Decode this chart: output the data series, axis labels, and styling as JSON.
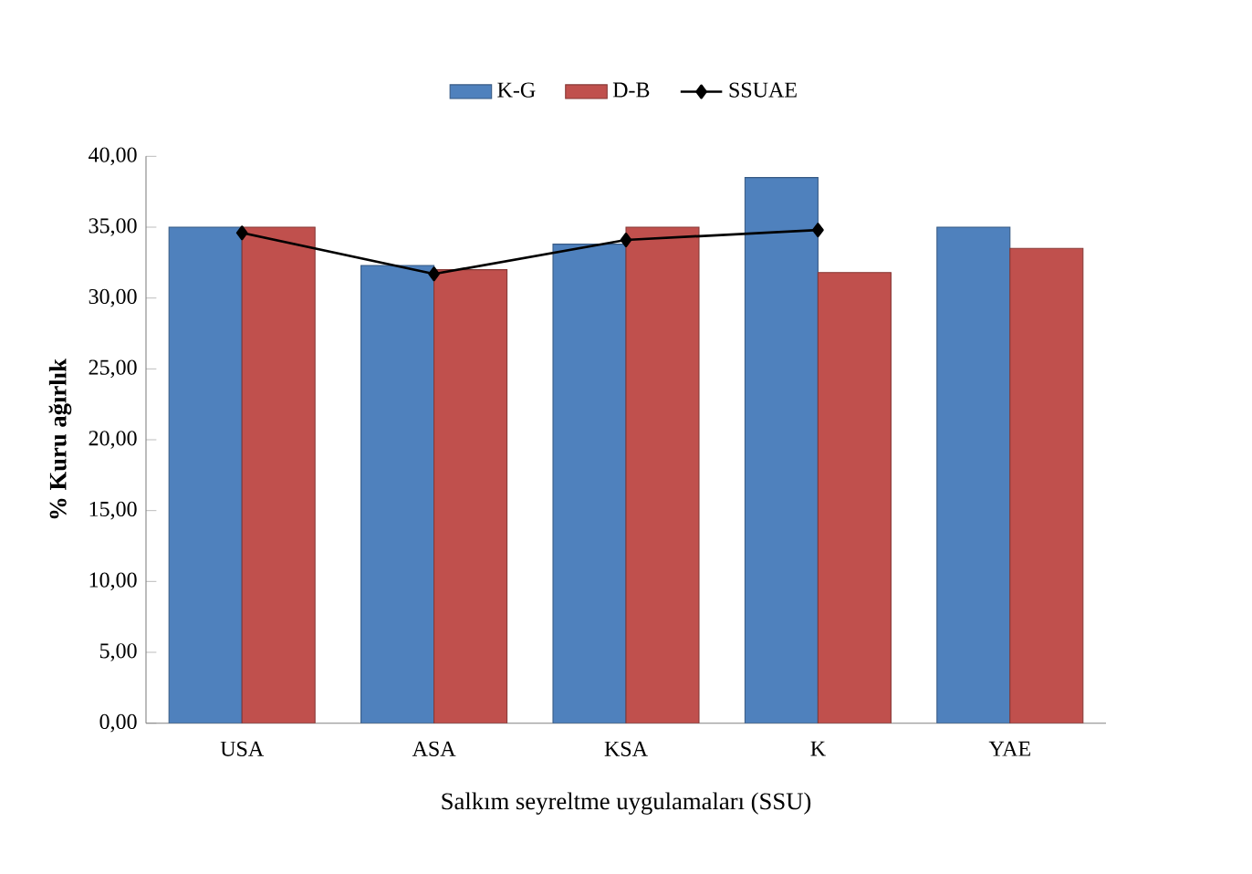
{
  "chart_data": {
    "type": "bar",
    "xlabel": "Salkım seyreltme uygulamaları (SSU)",
    "ylabel": "% Kuru ağırlık",
    "categories": [
      "USA",
      "ASA",
      "KSA",
      "K",
      "YAE"
    ],
    "series": [
      {
        "name": "K-G",
        "color": "#4f81bd",
        "values": [
          35.0,
          32.3,
          33.8,
          38.5,
          35.0
        ]
      },
      {
        "name": "D-B",
        "color": "#c0504d",
        "values": [
          35.0,
          32.0,
          35.0,
          31.8,
          33.5
        ]
      },
      {
        "name": "SSUAE",
        "type": "line",
        "color": "#000000",
        "marker": "diamond",
        "values": [
          34.6,
          31.7,
          34.1,
          34.8,
          null
        ]
      }
    ],
    "ylim": [
      0,
      40
    ],
    "yticks": [
      {
        "value": 0,
        "label": "0,00"
      },
      {
        "value": 5,
        "label": "5,00"
      },
      {
        "value": 10,
        "label": "10,00"
      },
      {
        "value": 15,
        "label": "15,00"
      },
      {
        "value": 20,
        "label": "20,00"
      },
      {
        "value": 25,
        "label": "25,00"
      },
      {
        "value": 30,
        "label": "30,00"
      },
      {
        "value": 35,
        "label": "35,00"
      },
      {
        "value": 40,
        "label": "40,00"
      }
    ],
    "legend": "top"
  }
}
